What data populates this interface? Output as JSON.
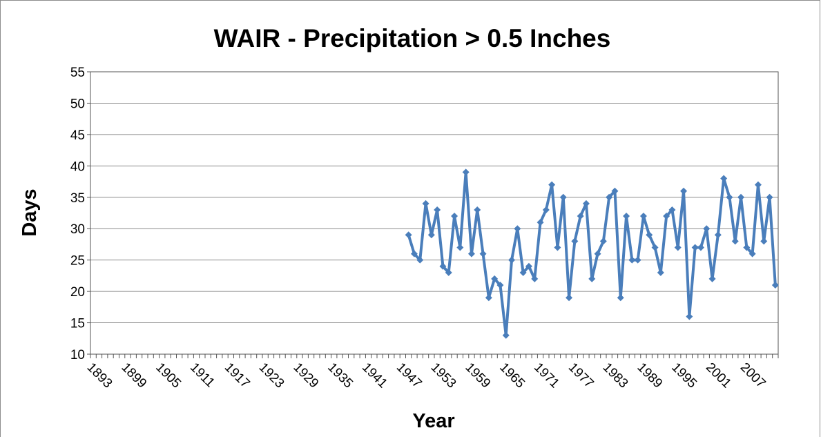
{
  "chart_data": {
    "type": "line",
    "title": "WAIR - Precipitation > 0.5 Inches",
    "x_label": "Year",
    "y_label": "Days",
    "categories": [
      "1893",
      null,
      null,
      null,
      null,
      null,
      "1899",
      null,
      null,
      null,
      null,
      null,
      "1905",
      null,
      null,
      null,
      null,
      null,
      "1911",
      null,
      null,
      null,
      null,
      null,
      "1917",
      null,
      null,
      null,
      null,
      null,
      "1923",
      null,
      null,
      null,
      null,
      null,
      "1929",
      null,
      null,
      null,
      null,
      null,
      "1935",
      null,
      null,
      null,
      null,
      null,
      "1941",
      null,
      null,
      null,
      null,
      null,
      "1947",
      null,
      null,
      null,
      null,
      null,
      "1953",
      null,
      null,
      null,
      null,
      null,
      "1959",
      null,
      null,
      null,
      null,
      null,
      "1965",
      null,
      null,
      null,
      null,
      null,
      "1971",
      null,
      null,
      null,
      null,
      null,
      "1977",
      null,
      null,
      null,
      null,
      null,
      "1983",
      null,
      null,
      null,
      null,
      null,
      "1989",
      null,
      null,
      null,
      null,
      null,
      "1995",
      null,
      null,
      null,
      null,
      null,
      "2001",
      null,
      null,
      null,
      null,
      null,
      "2007",
      null,
      null,
      null,
      null,
      null
    ],
    "series": [
      {
        "name": "Days",
        "color": "#4a7ebb",
        "values": [
          null,
          null,
          null,
          null,
          null,
          null,
          null,
          null,
          null,
          null,
          null,
          null,
          null,
          null,
          null,
          null,
          null,
          null,
          null,
          null,
          null,
          null,
          null,
          null,
          null,
          null,
          null,
          null,
          null,
          null,
          null,
          null,
          null,
          null,
          null,
          null,
          null,
          null,
          null,
          null,
          null,
          null,
          null,
          null,
          null,
          null,
          null,
          null,
          null,
          null,
          null,
          null,
          null,
          null,
          null,
          29,
          26,
          25,
          34,
          29,
          33,
          24,
          23,
          32,
          27,
          39,
          26,
          33,
          26,
          19,
          22,
          21,
          13,
          25,
          30,
          23,
          24,
          22,
          31,
          33,
          37,
          27,
          35,
          19,
          28,
          32,
          34,
          22,
          26,
          28,
          35,
          36,
          19,
          32,
          25,
          25,
          32,
          29,
          27,
          23,
          32,
          33,
          27,
          36,
          16,
          27,
          27,
          30,
          22,
          29,
          38,
          35,
          28,
          35,
          27,
          26,
          37,
          28,
          35,
          21
        ]
      }
    ],
    "ylim": [
      10,
      55
    ],
    "yticks": [
      10,
      15,
      20,
      25,
      30,
      35,
      40,
      45,
      50,
      55
    ],
    "grid": true
  }
}
